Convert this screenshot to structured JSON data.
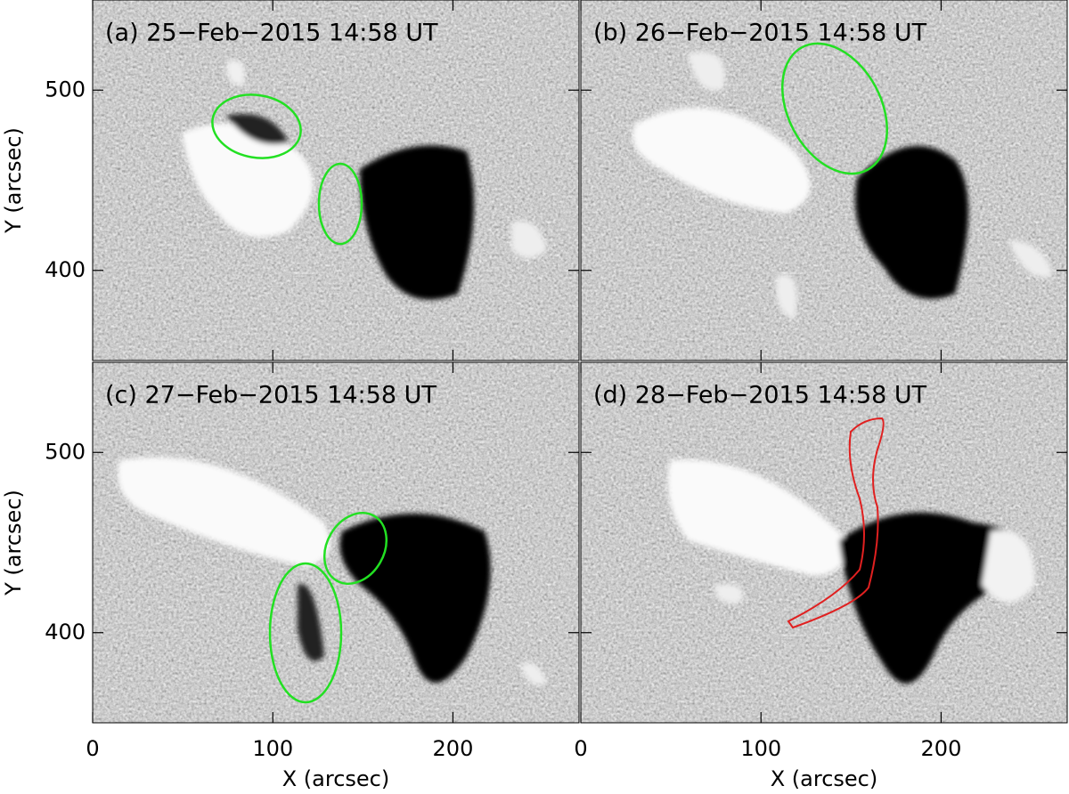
{
  "chart_data": [
    {
      "type": "image",
      "title": "(a) 25−Feb−2015 14:58 UT",
      "ylabel": "Y (arcsec)",
      "xlim": [
        0,
        270
      ],
      "ylim": [
        350,
        550
      ],
      "xticks": [
        0,
        100,
        200
      ],
      "yticks": [
        400,
        500
      ]
    },
    {
      "type": "image",
      "title": "(b) 26−Feb−2015 14:58 UT",
      "xlim": [
        0,
        270
      ],
      "ylim": [
        350,
        550
      ],
      "xticks": [
        0,
        100,
        200
      ],
      "yticks": [
        400,
        500
      ]
    },
    {
      "type": "image",
      "title": "(c) 27−Feb−2015 14:58 UT",
      "xlabel": "X (arcsec)",
      "ylabel": "Y (arcsec)",
      "xlim": [
        0,
        270
      ],
      "ylim": [
        350,
        550
      ],
      "xticks": [
        0,
        100,
        200
      ],
      "yticks": [
        400,
        500
      ]
    },
    {
      "type": "image",
      "title": "(d) 28−Feb−2015 14:58 UT",
      "xlabel": "X (arcsec)",
      "xlim": [
        0,
        270
      ],
      "ylim": [
        350,
        550
      ],
      "xticks": [
        0,
        100,
        200
      ],
      "yticks": [
        400,
        500
      ]
    }
  ]
}
